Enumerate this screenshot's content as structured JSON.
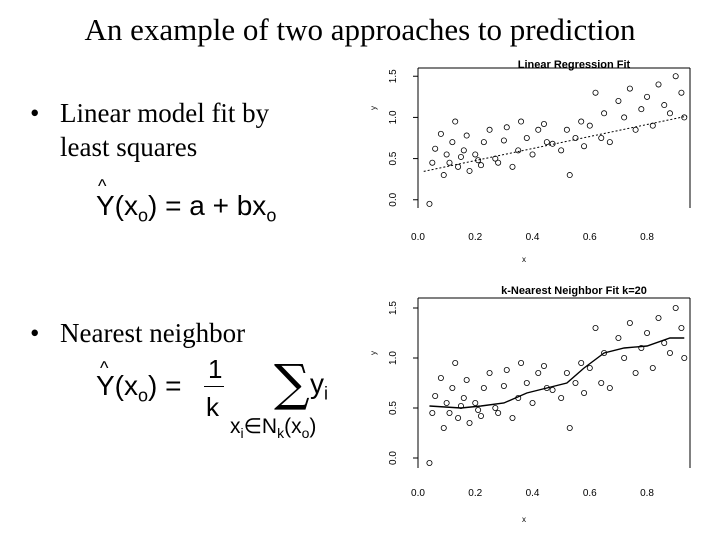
{
  "slide": {
    "title": "An example of two approaches to prediction",
    "bullets": [
      {
        "line1": "Linear model fit by",
        "line2": "least squares"
      },
      {
        "line1": "Nearest neighbor"
      }
    ],
    "formula1": {
      "lhs": "Y(x",
      "sub": "o",
      "rhs_a": ") = a + bx",
      "rhs_sub": "o"
    },
    "formula2": {
      "lhs": "Y(x",
      "sub": "o",
      "eq": ") =",
      "num": "1",
      "den": "k",
      "sum": "∑",
      "yi": "y",
      "yi_sub": "i",
      "under": "x",
      "under_sub": "i",
      "under_in": "∈N",
      "under_k": "k",
      "under_x": "(x",
      "under_xsub": "o",
      "under_close": ")"
    }
  },
  "chart_data": [
    {
      "type": "scatter",
      "title": "Linear Regression Fit",
      "xlabel": "x",
      "ylabel": "y",
      "xlim": [
        0.0,
        0.95
      ],
      "ylim": [
        -0.1,
        1.6
      ],
      "xticks": [
        "0.0",
        "0.2",
        "0.4",
        "0.6",
        "0.8"
      ],
      "yticks": [
        "0.0",
        "0.5",
        "1.0",
        "1.5"
      ],
      "fit": {
        "kind": "line",
        "style": "dotted",
        "intercept": 0.33,
        "slope": 0.73
      }
    },
    {
      "type": "scatter",
      "title": "k-Nearest Neighbor Fit k=20",
      "xlabel": "x",
      "ylabel": "y",
      "xlim": [
        0.0,
        0.95
      ],
      "ylim": [
        -0.1,
        1.6
      ],
      "xticks": [
        "0.0",
        "0.2",
        "0.4",
        "0.6",
        "0.8"
      ],
      "yticks": [
        "0.0",
        "0.5",
        "1.0",
        "1.5"
      ],
      "fit": {
        "kind": "curve",
        "style": "solid",
        "x": [
          0.04,
          0.15,
          0.22,
          0.3,
          0.38,
          0.45,
          0.52,
          0.58,
          0.65,
          0.72,
          0.8,
          0.88,
          0.93
        ],
        "y": [
          0.52,
          0.5,
          0.52,
          0.55,
          0.65,
          0.7,
          0.75,
          0.9,
          1.05,
          1.1,
          1.12,
          1.2,
          1.2
        ]
      }
    }
  ],
  "points": {
    "x": [
      0.04,
      0.05,
      0.06,
      0.08,
      0.09,
      0.1,
      0.11,
      0.12,
      0.13,
      0.14,
      0.15,
      0.16,
      0.17,
      0.18,
      0.2,
      0.21,
      0.22,
      0.23,
      0.25,
      0.27,
      0.28,
      0.3,
      0.31,
      0.33,
      0.35,
      0.36,
      0.38,
      0.4,
      0.42,
      0.44,
      0.45,
      0.47,
      0.5,
      0.52,
      0.53,
      0.55,
      0.57,
      0.58,
      0.6,
      0.62,
      0.64,
      0.65,
      0.67,
      0.7,
      0.72,
      0.74,
      0.76,
      0.78,
      0.8,
      0.82,
      0.84,
      0.86,
      0.88,
      0.9,
      0.92,
      0.93
    ],
    "y": [
      -0.05,
      0.45,
      0.62,
      0.8,
      0.3,
      0.55,
      0.45,
      0.7,
      0.95,
      0.4,
      0.52,
      0.6,
      0.78,
      0.35,
      0.55,
      0.48,
      0.42,
      0.7,
      0.85,
      0.5,
      0.45,
      0.72,
      0.88,
      0.4,
      0.6,
      0.95,
      0.75,
      0.55,
      0.85,
      0.92,
      0.7,
      0.68,
      0.6,
      0.85,
      0.3,
      0.75,
      0.95,
      0.65,
      0.9,
      1.3,
      0.75,
      1.05,
      0.7,
      1.2,
      1.0,
      1.35,
      0.85,
      1.1,
      1.25,
      0.9,
      1.4,
      1.15,
      1.05,
      1.5,
      1.3,
      1.0
    ]
  },
  "fonts": {}
}
